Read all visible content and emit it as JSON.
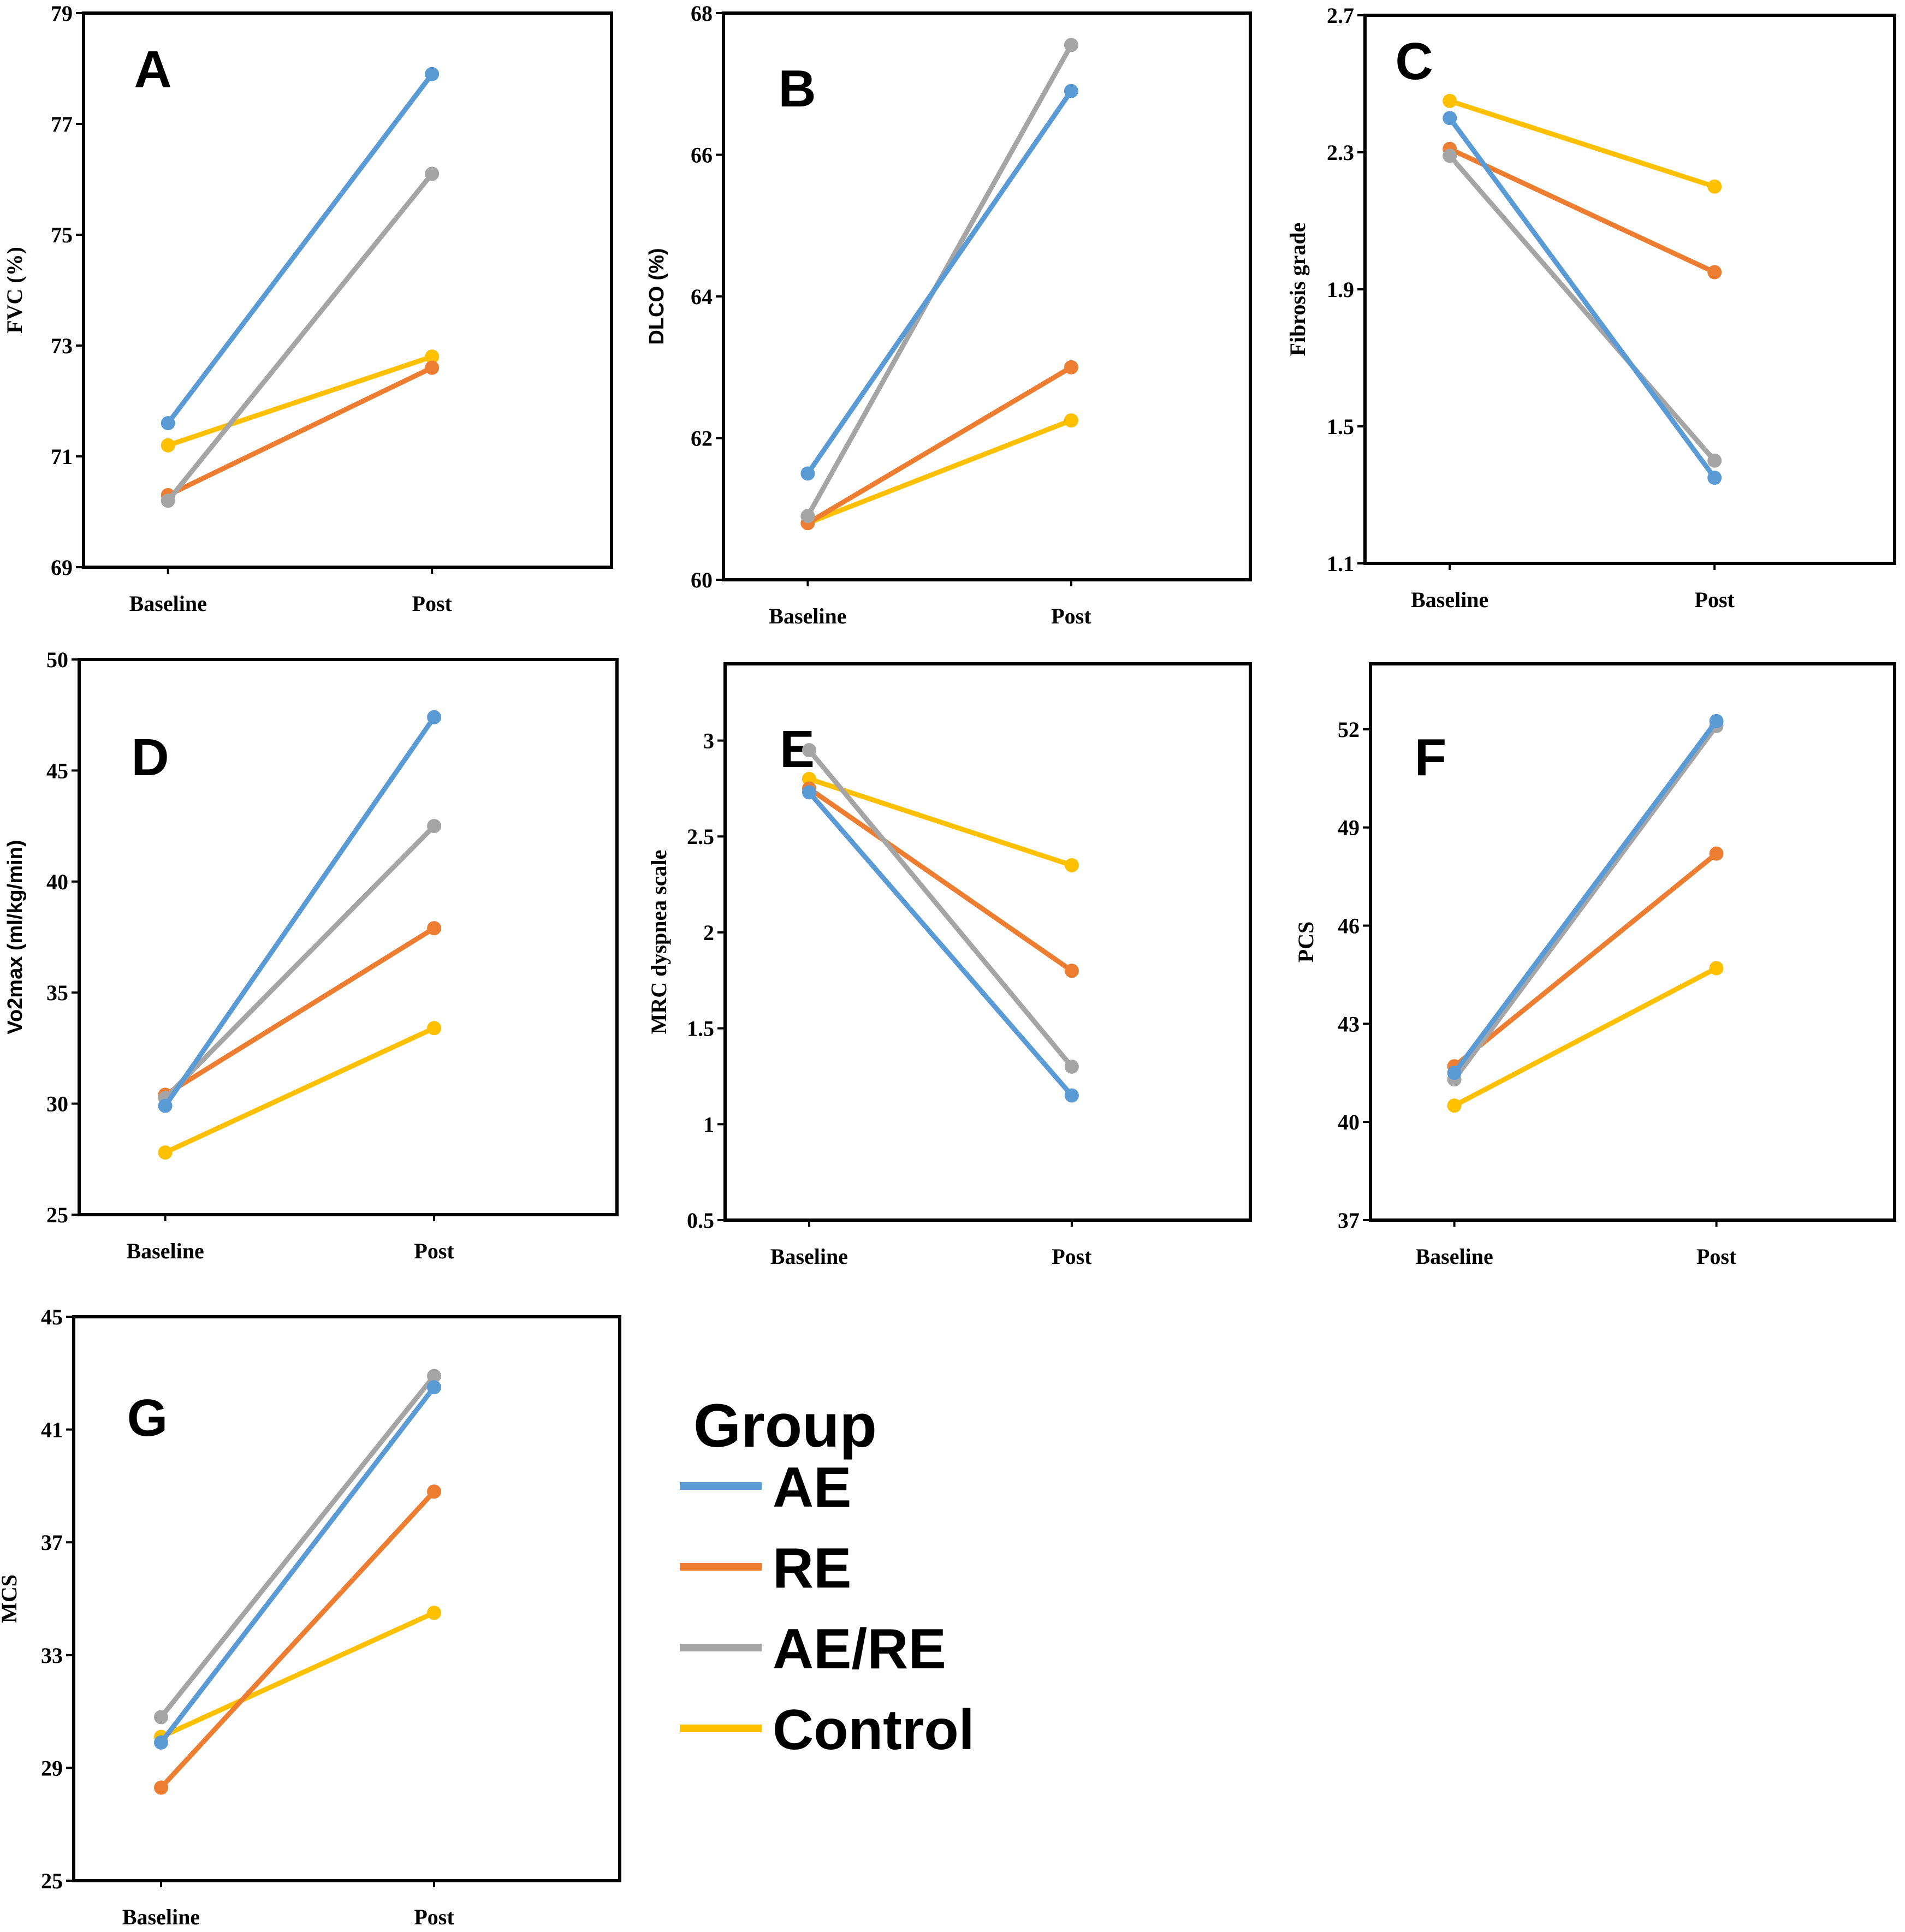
{
  "chart_data": [
    {
      "type": "line",
      "panel_label": "A",
      "ylabel": "FVC (%)",
      "categories": [
        "Baseline",
        "Post"
      ],
      "ylim": [
        69,
        79
      ],
      "yticks": [
        69,
        71,
        73,
        75,
        77,
        79
      ],
      "series": [
        {
          "name": "AE",
          "values": [
            71.6,
            77.9
          ]
        },
        {
          "name": "RE",
          "values": [
            70.3,
            72.6
          ]
        },
        {
          "name": "AE/RE",
          "values": [
            70.2,
            76.1
          ]
        },
        {
          "name": "Control",
          "values": [
            71.2,
            72.8
          ]
        }
      ]
    },
    {
      "type": "line",
      "panel_label": "B",
      "ylabel": "DLCO (%)",
      "categories": [
        "Baseline",
        "Post"
      ],
      "ylim": [
        60,
        68
      ],
      "yticks": [
        60,
        62,
        64,
        66,
        68
      ],
      "series": [
        {
          "name": "AE",
          "values": [
            61.5,
            66.9
          ]
        },
        {
          "name": "RE",
          "values": [
            60.8,
            63.0
          ]
        },
        {
          "name": "AE/RE",
          "values": [
            60.9,
            67.55
          ]
        },
        {
          "name": "Control",
          "values": [
            60.8,
            62.25
          ]
        }
      ]
    },
    {
      "type": "line",
      "panel_label": "C",
      "ylabel": "Fibrosis grade",
      "categories": [
        "Baseline",
        "Post"
      ],
      "ylim": [
        1.1,
        2.7
      ],
      "yticks": [
        "1.1",
        "1.5",
        "1.9",
        "2.3",
        "2.7"
      ],
      "series": [
        {
          "name": "AE",
          "values": [
            2.4,
            1.35
          ]
        },
        {
          "name": "RE",
          "values": [
            2.31,
            1.95
          ]
        },
        {
          "name": "AE/RE",
          "values": [
            2.29,
            1.4
          ]
        },
        {
          "name": "Control",
          "values": [
            2.45,
            2.2
          ]
        }
      ]
    },
    {
      "type": "line",
      "panel_label": "D",
      "ylabel": "Vo2max (ml/kg/min)",
      "categories": [
        "Baseline",
        "Post"
      ],
      "ylim": [
        25,
        50
      ],
      "yticks": [
        25,
        30,
        35,
        40,
        45,
        50
      ],
      "series": [
        {
          "name": "AE",
          "values": [
            29.9,
            47.4
          ]
        },
        {
          "name": "RE",
          "values": [
            30.4,
            37.9
          ]
        },
        {
          "name": "AE/RE",
          "values": [
            30.25,
            42.5
          ]
        },
        {
          "name": "Control",
          "values": [
            27.8,
            33.4
          ]
        }
      ]
    },
    {
      "type": "line",
      "panel_label": "E",
      "ylabel": "MRC dyspnea scale",
      "categories": [
        "Baseline",
        "Post"
      ],
      "ylim": [
        0.5,
        3.4
      ],
      "yticks": [
        "0.5",
        "1",
        "1.5",
        "2",
        "2.5",
        "3"
      ],
      "series": [
        {
          "name": "AE",
          "values": [
            2.73,
            1.15
          ]
        },
        {
          "name": "RE",
          "values": [
            2.75,
            1.8
          ]
        },
        {
          "name": "AE/RE",
          "values": [
            2.95,
            1.3
          ]
        },
        {
          "name": "Control",
          "values": [
            2.8,
            2.35
          ]
        }
      ]
    },
    {
      "type": "line",
      "panel_label": "F",
      "ylabel": "PCS",
      "categories": [
        "Baseline",
        "Post"
      ],
      "ylim": [
        37,
        54
      ],
      "yticks": [
        37,
        40,
        43,
        46,
        49,
        52
      ],
      "series": [
        {
          "name": "AE",
          "values": [
            41.5,
            52.25
          ]
        },
        {
          "name": "RE",
          "values": [
            41.7,
            48.2
          ]
        },
        {
          "name": "AE/RE",
          "values": [
            41.3,
            52.1
          ]
        },
        {
          "name": "Control",
          "values": [
            40.5,
            44.7
          ]
        }
      ]
    },
    {
      "type": "line",
      "panel_label": "G",
      "ylabel": "MCS",
      "categories": [
        "Baseline",
        "Post"
      ],
      "ylim": [
        25,
        45
      ],
      "yticks": [
        25,
        29,
        33,
        37,
        41,
        45
      ],
      "series": [
        {
          "name": "AE",
          "values": [
            29.9,
            42.5
          ]
        },
        {
          "name": "RE",
          "values": [
            28.3,
            38.8
          ]
        },
        {
          "name": "AE/RE",
          "values": [
            30.8,
            42.9
          ]
        },
        {
          "name": "Control",
          "values": [
            30.1,
            34.5
          ]
        }
      ]
    }
  ],
  "legend": {
    "title": "Group",
    "items": [
      {
        "name": "AE",
        "color": "#5b9bd5"
      },
      {
        "name": "RE",
        "color": "#ed7d31"
      },
      {
        "name": "AE/RE",
        "color": "#a5a5a5"
      },
      {
        "name": "Control",
        "color": "#ffc000"
      }
    ]
  },
  "series_colors": {
    "AE": "#5b9bd5",
    "RE": "#ed7d31",
    "AE/RE": "#a5a5a5",
    "Control": "#ffc000"
  }
}
